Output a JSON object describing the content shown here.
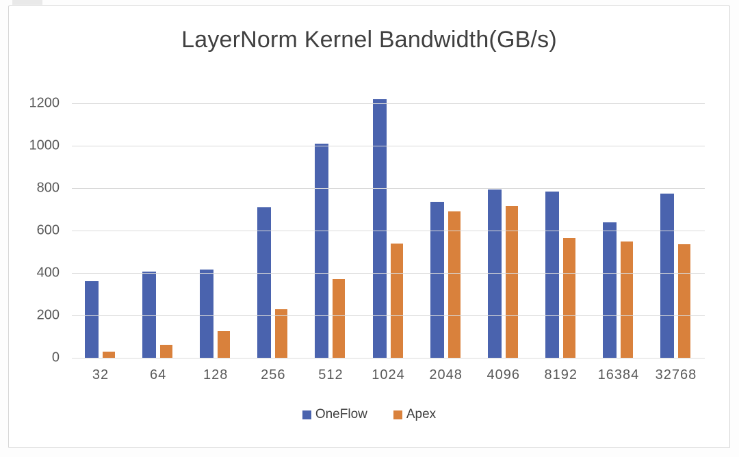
{
  "chart_data": {
    "type": "bar",
    "title": "LayerNorm Kernel Bandwidth(GB/s)",
    "categories": [
      "32",
      "64",
      "128",
      "256",
      "512",
      "1024",
      "2048",
      "4096",
      "8192",
      "16384",
      "32768"
    ],
    "series": [
      {
        "name": "OneFlow",
        "color": "#4a63ae",
        "values": [
          360,
          405,
          415,
          710,
          1010,
          1220,
          735,
          795,
          785,
          640,
          775
        ]
      },
      {
        "name": "Apex",
        "color": "#d9813c",
        "values": [
          30,
          60,
          125,
          230,
          370,
          540,
          690,
          715,
          565,
          550,
          535
        ]
      }
    ],
    "xlabel": "",
    "ylabel": "",
    "ylim": [
      0,
      1200
    ],
    "yticks": [
      0,
      200,
      400,
      600,
      800,
      1000,
      1200
    ],
    "grid": true,
    "legend_position": "bottom"
  },
  "colors": {
    "gridline": "#d9d9d9",
    "axis_label": "#595959",
    "title": "#404040",
    "card_border": "#d6d6d6",
    "background": "#ffffff"
  }
}
